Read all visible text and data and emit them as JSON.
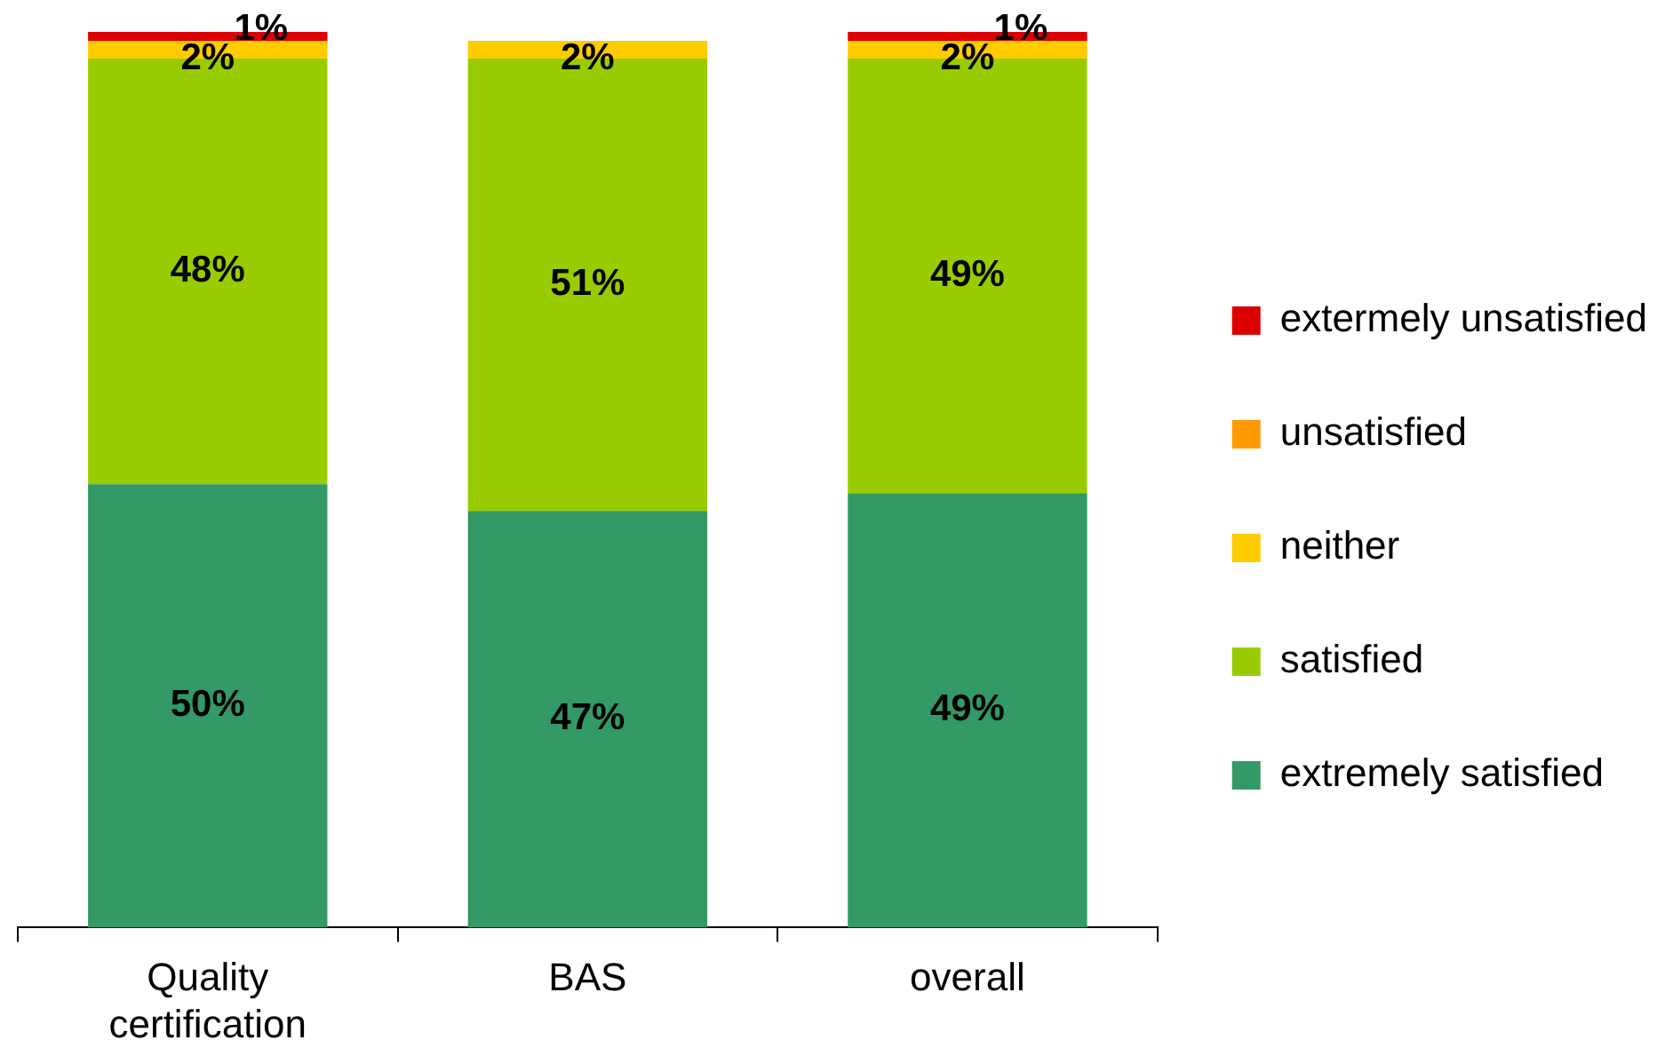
{
  "chart_data": {
    "type": "bar",
    "stacked": true,
    "categories": [
      "Quality certification",
      "BAS",
      "overall"
    ],
    "series": [
      {
        "name": "extremely satisfied",
        "color": "#339966",
        "values": [
          50,
          47,
          49
        ],
        "value_labels": [
          "50%",
          "47%",
          "49%"
        ]
      },
      {
        "name": "satisfied",
        "color": "#99cc00",
        "values": [
          48,
          51,
          49
        ],
        "value_labels": [
          "48%",
          "51%",
          "49%"
        ]
      },
      {
        "name": "neither",
        "color": "#ffcc00",
        "values": [
          2,
          2,
          2
        ],
        "value_labels": [
          "2%",
          "2%",
          "2%"
        ]
      },
      {
        "name": "unsatisfied",
        "color": "#ff9900",
        "values": [
          0,
          0,
          0
        ],
        "value_labels": [
          null,
          null,
          null
        ]
      },
      {
        "name": "extermely unsatisfied",
        "color": "#dd0000",
        "values": [
          1,
          0,
          1
        ],
        "value_labels": [
          "1%",
          null,
          "1%"
        ]
      }
    ],
    "ylim": [
      0,
      101
    ],
    "tick_labels": "x",
    "grid": false,
    "legend": "right"
  }
}
